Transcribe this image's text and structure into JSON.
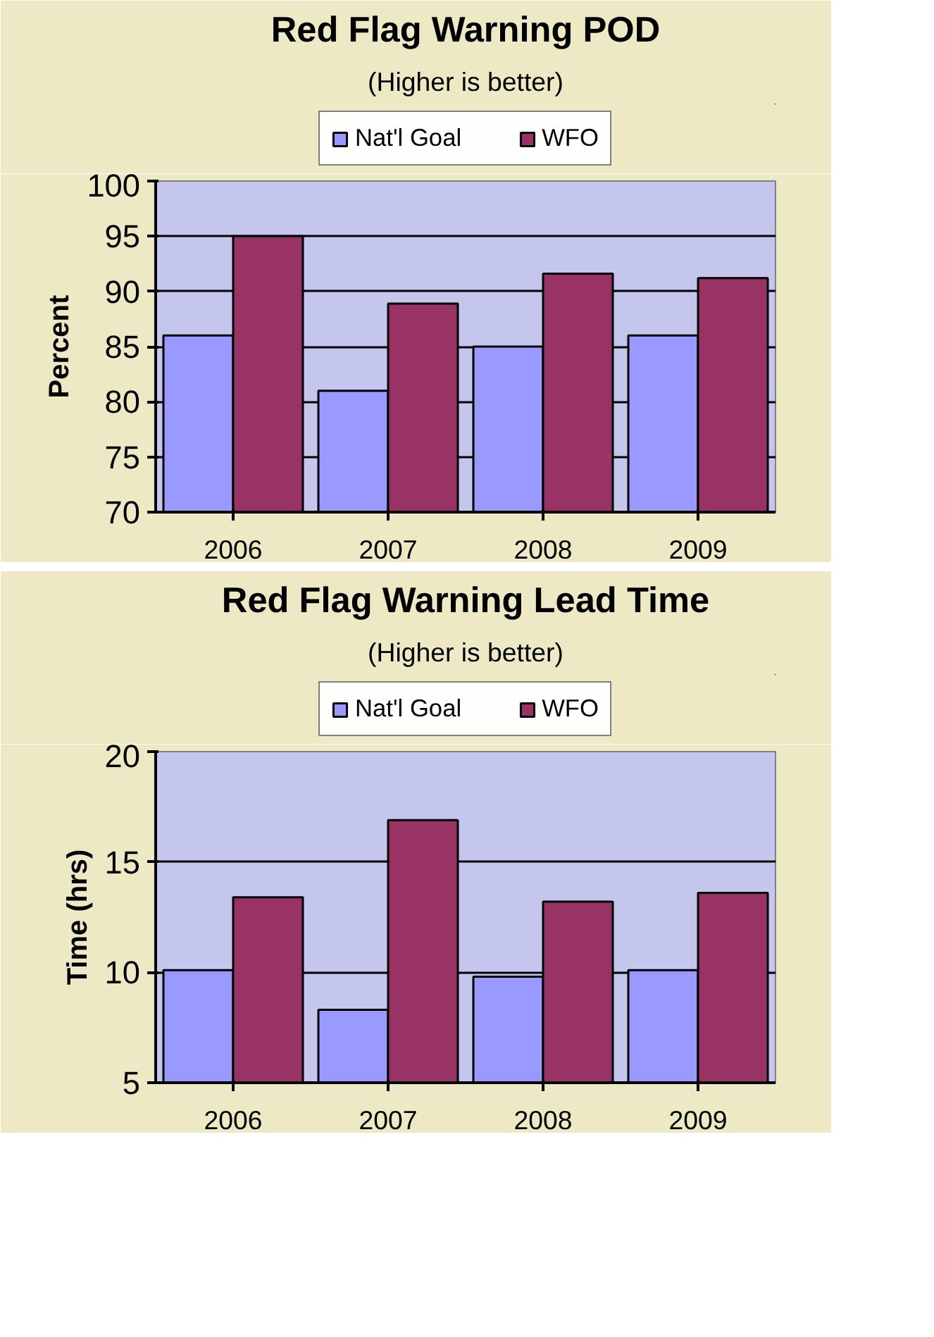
{
  "chart_data": [
    {
      "type": "bar",
      "title": "Red Flag Warning POD",
      "subtitle": "(Higher is better)",
      "ylabel": "Percent",
      "categories": [
        "2006",
        "2007",
        "2008",
        "2009"
      ],
      "series": [
        {
          "name": "Nat'l Goal",
          "color": "#9999ff",
          "values": [
            86,
            81,
            85,
            86
          ]
        },
        {
          "name": "WFO",
          "color": "#993366",
          "values": [
            95,
            88.9,
            91.6,
            91.2
          ]
        }
      ],
      "ylim": [
        70,
        100
      ],
      "yticks": [
        70,
        75,
        80,
        85,
        90,
        95,
        100
      ],
      "grid": "y",
      "legend": "top"
    },
    {
      "type": "bar",
      "title": "Red Flag Warning Lead Time",
      "subtitle": "(Higher is better)",
      "ylabel": "Time (hrs)",
      "categories": [
        "2006",
        "2007",
        "2008",
        "2009"
      ],
      "series": [
        {
          "name": "Nat'l Goal",
          "color": "#9999ff",
          "values": [
            10.1,
            8.3,
            9.8,
            10.1
          ]
        },
        {
          "name": "WFO",
          "color": "#993366",
          "values": [
            13.4,
            16.9,
            13.2,
            13.6
          ]
        }
      ],
      "ylim": [
        5,
        20
      ],
      "yticks": [
        5,
        10,
        15,
        20
      ],
      "grid": "y",
      "legend": "top"
    }
  ]
}
